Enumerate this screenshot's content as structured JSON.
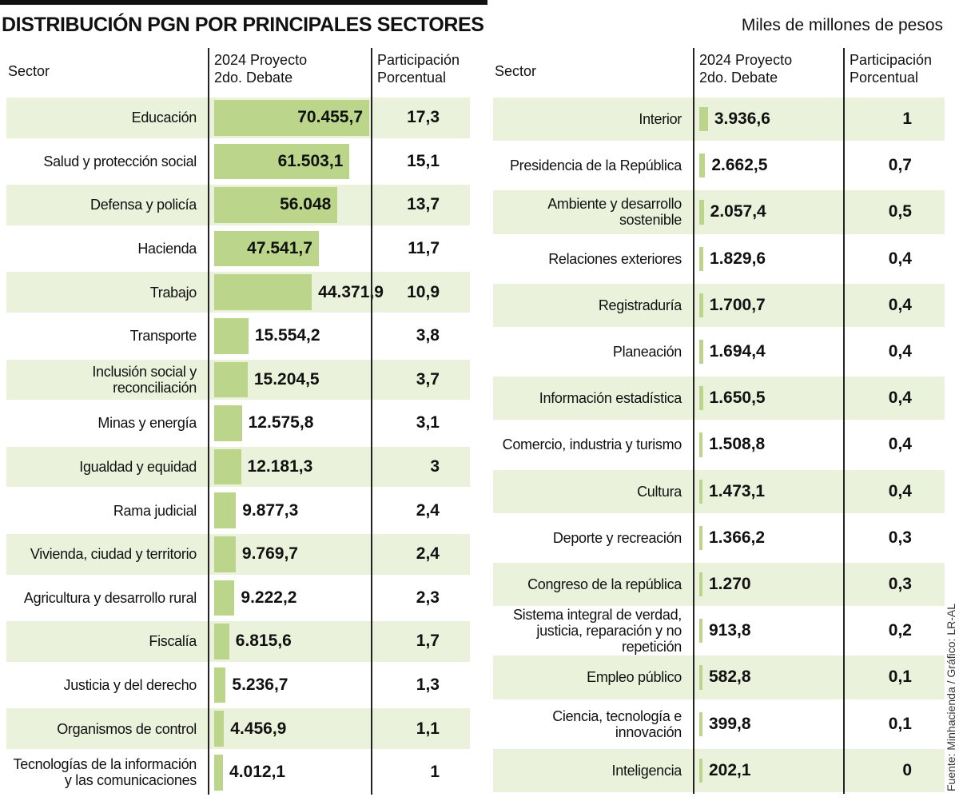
{
  "title": "DISTRIBUCIÓN PGN POR PRINCIPALES SECTORES",
  "units": "Miles de millones de pesos",
  "source": "Fuente: Minhacienda / Gráfico: LR-AL",
  "colors": {
    "bar": "#bbd68a",
    "shade": "#eaf2db",
    "text": "#111111"
  },
  "chart_data": {
    "type": "table",
    "headers": {
      "sector": "Sector",
      "value": [
        "2024 Proyecto",
        "2do. Debate"
      ],
      "share": [
        "Participación",
        "Porcentual"
      ]
    },
    "value_max": 70455.7,
    "left": [
      {
        "sector": [
          "Educación"
        ],
        "value": 70455.7,
        "value_label": "70.455,7",
        "share": "17,3"
      },
      {
        "sector": [
          "Salud y protección social"
        ],
        "value": 61503.1,
        "value_label": "61.503,1",
        "share": "15,1"
      },
      {
        "sector": [
          "Defensa y policía"
        ],
        "value": 56048,
        "value_label": "56.048",
        "share": "13,7"
      },
      {
        "sector": [
          "Hacienda"
        ],
        "value": 47541.7,
        "value_label": "47.541,7",
        "share": "11,7"
      },
      {
        "sector": [
          "Trabajo"
        ],
        "value": 44371.9,
        "value_label": "44.371,9",
        "share": "10,9"
      },
      {
        "sector": [
          "Transporte"
        ],
        "value": 15554.2,
        "value_label": "15.554,2",
        "share": "3,8"
      },
      {
        "sector": [
          "Inclusión social y reconciliación"
        ],
        "value": 15204.5,
        "value_label": "15.204,5",
        "share": "3,7"
      },
      {
        "sector": [
          "Minas y energía"
        ],
        "value": 12575.8,
        "value_label": "12.575,8",
        "share": "3,1"
      },
      {
        "sector": [
          "Igualdad y equidad"
        ],
        "value": 12181.3,
        "value_label": "12.181,3",
        "share": "3"
      },
      {
        "sector": [
          "Rama judicial"
        ],
        "value": 9877.3,
        "value_label": "9.877,3",
        "share": "2,4"
      },
      {
        "sector": [
          "Vivienda, ciudad y territorio"
        ],
        "value": 9769.7,
        "value_label": "9.769,7",
        "share": "2,4"
      },
      {
        "sector": [
          "Agricultura y desarrollo rural"
        ],
        "value": 9222.2,
        "value_label": "9.222,2",
        "share": "2,3"
      },
      {
        "sector": [
          "Fiscalía"
        ],
        "value": 6815.6,
        "value_label": "6.815,6",
        "share": "1,7"
      },
      {
        "sector": [
          "Justicia y del derecho"
        ],
        "value": 5236.7,
        "value_label": "5.236,7",
        "share": "1,3"
      },
      {
        "sector": [
          "Organismos de control"
        ],
        "value": 4456.9,
        "value_label": "4.456,9",
        "share": "1,1"
      },
      {
        "sector": [
          "Tecnologías de la información",
          "y las comunicaciones"
        ],
        "value": 4012.1,
        "value_label": "4.012,1",
        "share": "1"
      }
    ],
    "right": [
      {
        "sector": [
          "Interior"
        ],
        "value": 3936.6,
        "value_label": "3.936,6",
        "share": "1"
      },
      {
        "sector": [
          "Presidencia de la República"
        ],
        "value": 2662.5,
        "value_label": "2.662,5",
        "share": "0,7"
      },
      {
        "sector": [
          "Ambiente y desarrollo sostenible"
        ],
        "value": 2057.4,
        "value_label": "2.057,4",
        "share": "0,5"
      },
      {
        "sector": [
          "Relaciones exteriores"
        ],
        "value": 1829.6,
        "value_label": "1.829,6",
        "share": "0,4"
      },
      {
        "sector": [
          "Registraduría"
        ],
        "value": 1700.7,
        "value_label": "1.700,7",
        "share": "0,4"
      },
      {
        "sector": [
          "Planeación"
        ],
        "value": 1694.4,
        "value_label": "1.694,4",
        "share": "0,4"
      },
      {
        "sector": [
          "Información estadística"
        ],
        "value": 1650.5,
        "value_label": "1.650,5",
        "share": "0,4"
      },
      {
        "sector": [
          "Comercio, industria y turismo"
        ],
        "value": 1508.8,
        "value_label": "1.508,8",
        "share": "0,4"
      },
      {
        "sector": [
          "Cultura"
        ],
        "value": 1473.1,
        "value_label": "1.473,1",
        "share": "0,4"
      },
      {
        "sector": [
          "Deporte y recreación"
        ],
        "value": 1366.2,
        "value_label": "1.366,2",
        "share": "0,3"
      },
      {
        "sector": [
          "Congreso de la república"
        ],
        "value": 1270,
        "value_label": "1.270",
        "share": "0,3"
      },
      {
        "sector": [
          "Sistema integral de verdad,",
          "justicia, reparación y no repetición"
        ],
        "value": 913.8,
        "value_label": "913,8",
        "share": "0,2"
      },
      {
        "sector": [
          "Empleo público"
        ],
        "value": 582.8,
        "value_label": "582,8",
        "share": "0,1"
      },
      {
        "sector": [
          "Ciencia, tecnología e innovación"
        ],
        "value": 399.8,
        "value_label": "399,8",
        "share": "0,1"
      },
      {
        "sector": [
          "Inteligencia"
        ],
        "value": 202.1,
        "value_label": "202,1",
        "share": "0"
      }
    ]
  }
}
